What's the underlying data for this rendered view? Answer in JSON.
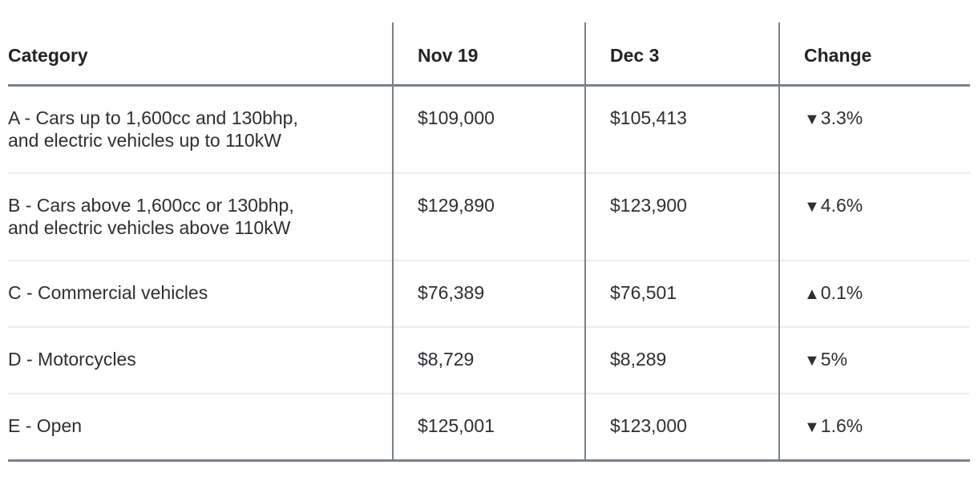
{
  "colors": {
    "rule_dark": "#79828b",
    "rule_light": "#ececec",
    "text": "#2c2f33",
    "header_text": "#212427",
    "background": "#ffffff"
  },
  "table": {
    "columns": [
      {
        "key": "category",
        "label": "Category"
      },
      {
        "key": "nov19",
        "label": "Nov 19"
      },
      {
        "key": "dec3",
        "label": "Dec 3"
      },
      {
        "key": "change",
        "label": "Change"
      }
    ],
    "rows": [
      {
        "category": "A - Cars up to 1,600cc and 130bhp,\nand electric vehicles up to 110kW",
        "nov19": "$109,000",
        "dec3": "$105,413",
        "change": {
          "direction": "down",
          "icon": "▼",
          "value": "3.3%"
        }
      },
      {
        "category": "B - Cars above 1,600cc or 130bhp,\nand electric vehicles above 110kW",
        "nov19": "$129,890",
        "dec3": "$123,900",
        "change": {
          "direction": "down",
          "icon": "▼",
          "value": "4.6%"
        }
      },
      {
        "category": "C - Commercial vehicles",
        "nov19": "$76,389",
        "dec3": "$76,501",
        "change": {
          "direction": "up",
          "icon": "▲",
          "value": "0.1%"
        }
      },
      {
        "category": "D - Motorcycles",
        "nov19": "$8,729",
        "dec3": "$8,289",
        "change": {
          "direction": "down",
          "icon": "▼",
          "value": "5%"
        }
      },
      {
        "category": "E - Open",
        "nov19": "$125,001",
        "dec3": "$123,000",
        "change": {
          "direction": "down",
          "icon": "▼",
          "value": "1.6%"
        }
      }
    ]
  },
  "chart_data": {
    "type": "table",
    "title": "",
    "columns": [
      "Category",
      "Nov 19",
      "Dec 3",
      "Change"
    ],
    "rows": [
      [
        "A - Cars up to 1,600cc and 130bhp, and electric vehicles up to 110kW",
        "$109,000",
        "$105,413",
        "▼3.3%"
      ],
      [
        "B - Cars above 1,600cc or 130bhp, and electric vehicles above 110kW",
        "$129,890",
        "$123,900",
        "▼4.6%"
      ],
      [
        "C - Commercial vehicles",
        "$76,389",
        "$76,501",
        "▲0.1%"
      ],
      [
        "D - Motorcycles",
        "$8,729",
        "$8,289",
        "▼5%"
      ],
      [
        "E - Open",
        "$125,001",
        "$123,000",
        "▼1.6%"
      ]
    ],
    "change_percent": [
      {
        "category": "A",
        "nov19": 109000,
        "dec3": 105413,
        "change_pct": -3.3
      },
      {
        "category": "B",
        "nov19": 129890,
        "dec3": 123900,
        "change_pct": -4.6
      },
      {
        "category": "C",
        "nov19": 76389,
        "dec3": 76501,
        "change_pct": 0.1
      },
      {
        "category": "D",
        "nov19": 8729,
        "dec3": 8289,
        "change_pct": -5
      },
      {
        "category": "E",
        "nov19": 125001,
        "dec3": 123000,
        "change_pct": -1.6
      }
    ]
  }
}
